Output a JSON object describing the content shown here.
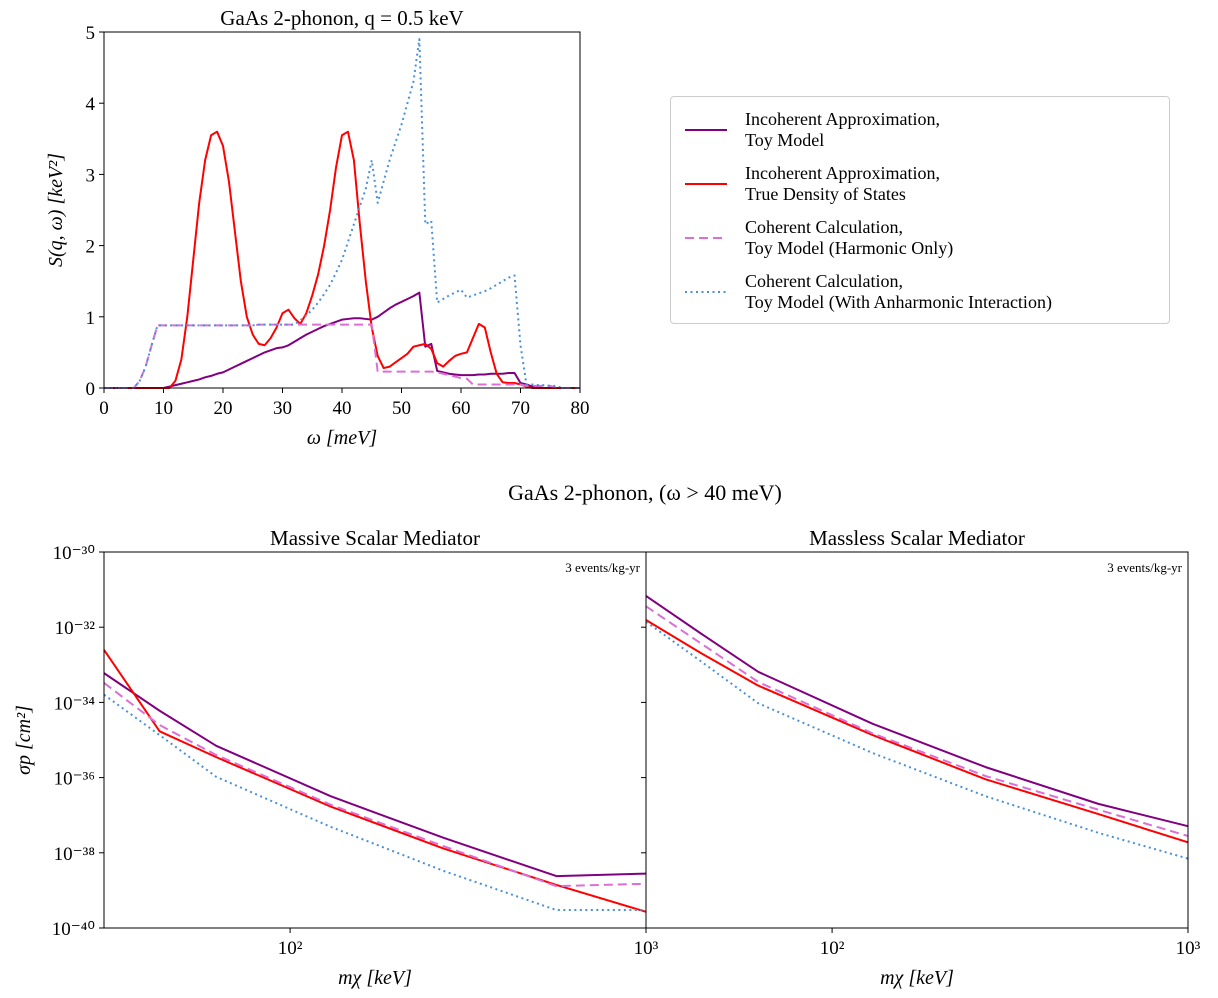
{
  "title": "GaAs 2-phonon, (ω > 40 meV)",
  "chart_data": [
    {
      "type": "line",
      "title": "GaAs 2-phonon, q = 0.5 keV",
      "xlabel": "ω [meV]",
      "ylabel": "S(q, ω) [keV²]",
      "xlim": [
        0,
        80
      ],
      "ylim": [
        0,
        5
      ],
      "xticks": [
        0,
        10,
        20,
        30,
        40,
        50,
        60,
        70,
        80
      ],
      "yticks": [
        0,
        1,
        2,
        3,
        4,
        5
      ],
      "legend": "outside-right",
      "x": [
        0,
        1,
        2,
        3,
        4,
        5,
        6,
        7,
        8,
        9,
        10,
        11,
        12,
        13,
        14,
        15,
        16,
        17,
        18,
        19,
        20,
        21,
        22,
        23,
        24,
        25,
        26,
        27,
        28,
        29,
        30,
        31,
        32,
        33,
        34,
        35,
        36,
        37,
        38,
        39,
        40,
        41,
        42,
        43,
        44,
        45,
        46,
        47,
        48,
        49,
        50,
        51,
        52,
        53,
        54,
        55,
        56,
        57,
        58,
        59,
        60,
        61,
        62,
        63,
        64,
        65,
        66,
        67,
        68,
        69,
        70,
        71,
        72,
        73,
        74,
        75,
        76,
        77,
        78,
        79,
        80
      ],
      "series": [
        {
          "name": "Incoherent Approximation,\nToy Model",
          "color": "#800080",
          "style": "solid",
          "values": [
            0,
            0,
            0,
            0,
            0,
            0,
            0,
            0,
            0,
            0,
            0,
            0.02,
            0.04,
            0.06,
            0.08,
            0.1,
            0.12,
            0.15,
            0.17,
            0.2,
            0.22,
            0.26,
            0.3,
            0.34,
            0.38,
            0.42,
            0.46,
            0.5,
            0.53,
            0.56,
            0.57,
            0.6,
            0.65,
            0.7,
            0.75,
            0.79,
            0.83,
            0.87,
            0.9,
            0.93,
            0.96,
            0.97,
            0.98,
            0.98,
            0.97,
            0.96,
            1.0,
            1.06,
            1.12,
            1.17,
            1.21,
            1.25,
            1.29,
            1.34,
            0.58,
            0.62,
            0.24,
            0.22,
            0.2,
            0.19,
            0.18,
            0.18,
            0.18,
            0.19,
            0.19,
            0.2,
            0.2,
            0.2,
            0.21,
            0.21,
            0.07,
            0.05,
            0.02,
            0.01,
            0,
            0,
            0,
            0,
            0,
            0,
            0
          ]
        },
        {
          "name": "Incoherent Approximation,\nTrue Density of States",
          "color": "#ff0000",
          "style": "solid",
          "values": [
            0,
            0,
            0,
            0,
            0,
            0,
            0,
            0,
            0,
            0,
            0,
            0,
            0.1,
            0.4,
            1.0,
            1.8,
            2.6,
            3.2,
            3.55,
            3.6,
            3.4,
            2.9,
            2.2,
            1.5,
            1.0,
            0.75,
            0.62,
            0.6,
            0.7,
            0.85,
            1.05,
            1.1,
            0.98,
            0.9,
            1.05,
            1.3,
            1.6,
            2.0,
            2.5,
            3.1,
            3.55,
            3.6,
            3.2,
            2.3,
            1.5,
            0.85,
            0.45,
            0.28,
            0.3,
            0.36,
            0.42,
            0.48,
            0.58,
            0.6,
            0.62,
            0.55,
            0.35,
            0.3,
            0.38,
            0.45,
            0.48,
            0.5,
            0.7,
            0.9,
            0.85,
            0.5,
            0.2,
            0.08,
            0.07,
            0.07,
            0.05,
            0.02,
            0,
            0,
            0,
            0,
            0,
            0,
            0,
            0,
            0
          ]
        },
        {
          "name": "Coherent Calculation,\nToy Model (Harmonic Only)",
          "color": "#da70d6",
          "style": "dashed",
          "values": [
            0,
            0,
            0,
            0,
            0,
            0,
            0.1,
            0.3,
            0.6,
            0.88,
            0.88,
            0.88,
            0.88,
            0.88,
            0.88,
            0.88,
            0.88,
            0.88,
            0.88,
            0.88,
            0.88,
            0.88,
            0.88,
            0.88,
            0.88,
            0.88,
            0.89,
            0.89,
            0.89,
            0.89,
            0.89,
            0.89,
            0.89,
            0.89,
            0.89,
            0.89,
            0.89,
            0.89,
            0.89,
            0.89,
            0.89,
            0.89,
            0.89,
            0.89,
            0.89,
            0.89,
            0.23,
            0.23,
            0.23,
            0.23,
            0.23,
            0.23,
            0.23,
            0.23,
            0.23,
            0.23,
            0.22,
            0.2,
            0.18,
            0.16,
            0.14,
            0.13,
            0.05,
            0.05,
            0.05,
            0.05,
            0.05,
            0.05,
            0.05,
            0.05,
            0.05,
            0.03,
            0.03,
            0.03,
            0.03,
            0.03,
            0,
            0,
            0,
            0,
            0
          ]
        },
        {
          "name": "Coherent Calculation,\nToy Model (With Anharmonic Interaction)",
          "color": "#4a90d9",
          "style": "dotted",
          "values": [
            0,
            0,
            0,
            0,
            0,
            0,
            0.1,
            0.3,
            0.6,
            0.88,
            0.88,
            0.88,
            0.88,
            0.88,
            0.88,
            0.88,
            0.88,
            0.88,
            0.88,
            0.88,
            0.88,
            0.88,
            0.88,
            0.88,
            0.88,
            0.88,
            0.89,
            0.89,
            0.89,
            0.89,
            0.89,
            0.89,
            0.89,
            0.95,
            1.02,
            1.1,
            1.2,
            1.32,
            1.45,
            1.62,
            1.8,
            2.05,
            2.3,
            2.55,
            2.8,
            3.2,
            2.6,
            2.9,
            3.2,
            3.45,
            3.7,
            4.0,
            4.3,
            4.9,
            2.3,
            2.35,
            1.2,
            1.25,
            1.3,
            1.34,
            1.38,
            1.27,
            1.3,
            1.33,
            1.36,
            1.4,
            1.45,
            1.5,
            1.55,
            1.58,
            0.6,
            0.05,
            0.05,
            0.04,
            0.04,
            0.03,
            0.03,
            0,
            0,
            0,
            0
          ]
        }
      ]
    },
    {
      "type": "line",
      "title": "Massive Scalar Mediator",
      "xlabel": "mχ [keV]",
      "ylabel": "σp [cm²]",
      "annotation": "3 events/kg-yr",
      "xscale": "log",
      "yscale": "log",
      "xlim": [
        30,
        1000
      ],
      "ylim": [
        1e-40,
        1e-30
      ],
      "xticks": [
        {
          "value": 100,
          "label": "10²"
        },
        {
          "value": 1000,
          "label": "10³"
        }
      ],
      "yticks": [
        {
          "value": 1e-40,
          "label": "10⁻⁴⁰"
        },
        {
          "value": 1e-38,
          "label": "10⁻³⁸"
        },
        {
          "value": 1e-36,
          "label": "10⁻³⁶"
        },
        {
          "value": 1e-34,
          "label": "10⁻³⁴"
        },
        {
          "value": 1e-32,
          "label": "10⁻³²"
        },
        {
          "value": 1e-30,
          "label": "10⁻³⁰"
        }
      ],
      "x": [
        30,
        43,
        62,
        130,
        270,
        560,
        1000
      ],
      "series": [
        {
          "color": "#800080",
          "style": "solid",
          "values": [
            6e-34,
            6e-35,
            7e-36,
            3.2e-37,
            2.5e-38,
            2.4e-39,
            2.8e-39
          ]
        },
        {
          "color": "#ff0000",
          "style": "solid",
          "values": [
            2.5e-33,
            1.7e-35,
            3.5e-36,
            1.7e-37,
            1.3e-38,
            1.4e-39,
            2.7e-40
          ]
        },
        {
          "color": "#da70d6",
          "style": "dashed",
          "values": [
            3.3e-34,
            2.5e-35,
            4e-36,
            1.9e-37,
            1.5e-38,
            1.3e-39,
            1.5e-39
          ]
        },
        {
          "color": "#4a90d9",
          "style": "dotted",
          "values": [
            1.6e-34,
            1.35e-35,
            1.05e-36,
            4.9e-38,
            3.3e-39,
            3e-40,
            3e-40
          ]
        }
      ]
    },
    {
      "type": "line",
      "title": "Massless Scalar Mediator",
      "xlabel": "mχ [keV]",
      "annotation": "3 events/kg-yr",
      "xscale": "log",
      "yscale": "log",
      "xlim": [
        30,
        1000
      ],
      "ylim": [
        1e-40,
        1e-30
      ],
      "xticks": [
        {
          "value": 100,
          "label": "10²"
        },
        {
          "value": 1000,
          "label": "10³"
        }
      ],
      "yticks": [
        1e-40,
        1e-38,
        1e-36,
        1e-34,
        1e-32,
        1e-30
      ],
      "ytick_labels": false,
      "x": [
        30,
        43,
        62,
        130,
        270,
        560,
        1000
      ],
      "series": [
        {
          "color": "#800080",
          "style": "solid",
          "values": [
            6.8e-32,
            6.6e-33,
            6.5e-34,
            2.7e-35,
            1.9e-36,
            2e-37,
            5.1e-38
          ]
        },
        {
          "color": "#ff0000",
          "style": "solid",
          "values": [
            1.55e-32,
            2e-33,
            2.8e-34,
            1.35e-35,
            9e-37,
            1.07e-37,
            1.9e-38
          ]
        },
        {
          "color": "#da70d6",
          "style": "dashed",
          "values": [
            3.6e-32,
            3.6e-33,
            3.5e-34,
            1.5e-35,
            1.1e-36,
            1.4e-37,
            2.8e-38
          ]
        },
        {
          "color": "#4a90d9",
          "style": "dotted",
          "values": [
            1.4e-32,
            1.2e-33,
            9.5e-35,
            4.5e-36,
            3.2e-37,
            3.4e-38,
            7e-39
          ]
        }
      ]
    }
  ]
}
